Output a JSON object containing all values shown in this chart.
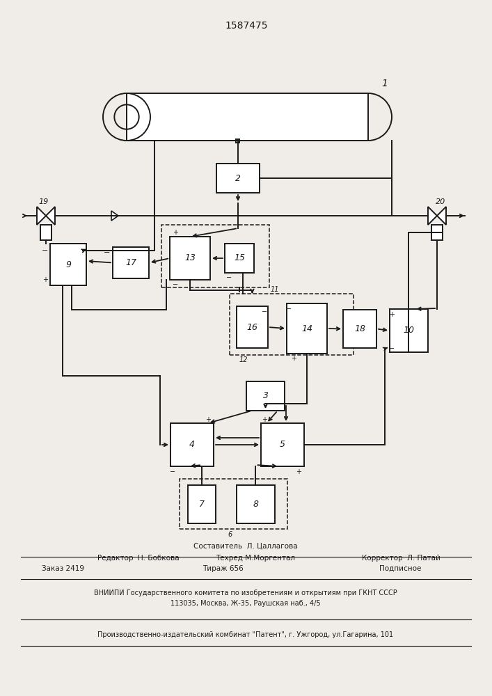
{
  "patent_number": "1587475",
  "bg_color": "#f0ede8",
  "lc": "#1a1a1a",
  "footer": {
    "line1_left": "Редактор  Н. Бобкова",
    "line1_center": "Составитель  Л. Цаллагова",
    "line1_right": "",
    "line2_center": "Техред М.Моргентал",
    "line2_right": "Корректор  Л. Патай",
    "order": "Заказ 2419",
    "tirazh": "Тираж 656",
    "podpisnoe": "Подписное",
    "vniipи": "ВНИИПИ Государственного комитета по изобретениям и открытиям при ГКНТ СССР",
    "address": "113035, Москва, Ж-35, Раушская наб., 4/5",
    "factory": "Производственно-издательский комбинат \"Патент\", г. Ужгород, ул.Гагарина, 101"
  }
}
